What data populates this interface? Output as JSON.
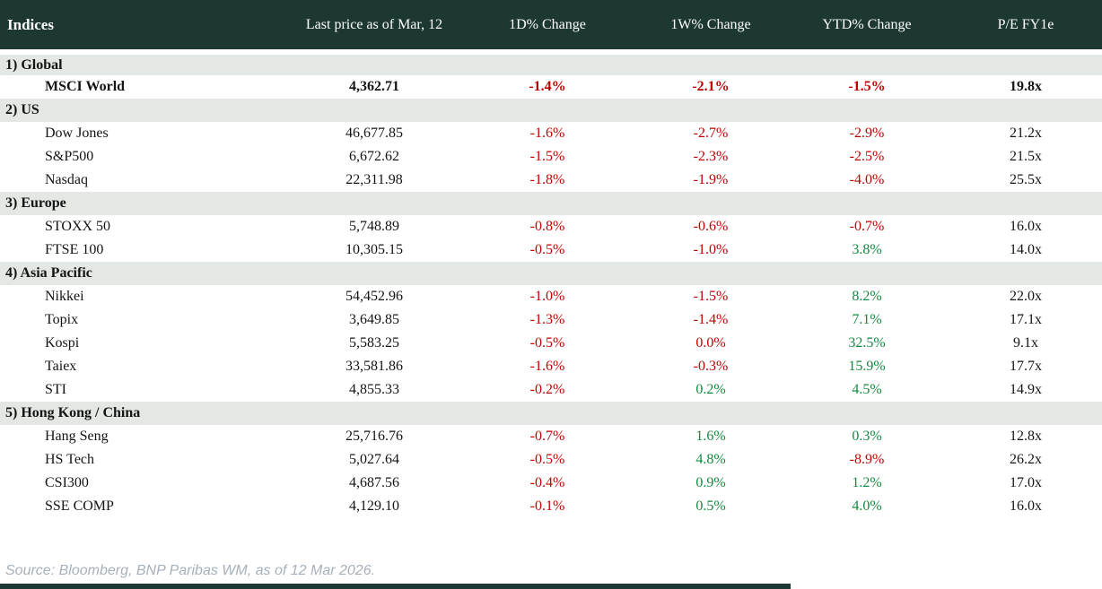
{
  "header": {
    "title": "Indices",
    "columns": [
      "Last price as of Mar, 12",
      "1D% Change",
      "1W% Change",
      "YTD% Change",
      "P/E FY1e"
    ]
  },
  "colors": {
    "header_bg": "#1d3832",
    "section_bg": "#e4e8e4",
    "negative": "#c00000",
    "positive": "#128a3e",
    "source_text": "#a6b0ba"
  },
  "sections": [
    {
      "label": "1) Global",
      "rows": [
        {
          "name": "MSCI World",
          "price": "4,362.71",
          "changes": [
            {
              "v": "-1.4%",
              "c": "neg"
            },
            {
              "v": "-2.1%",
              "c": "neg"
            },
            {
              "v": "-1.5%",
              "c": "neg"
            }
          ],
          "pe": "19.8x",
          "bold": true
        }
      ]
    },
    {
      "label": "2) US",
      "rows": [
        {
          "name": "Dow Jones",
          "price": "46,677.85",
          "changes": [
            {
              "v": "-1.6%",
              "c": "neg"
            },
            {
              "v": "-2.7%",
              "c": "neg"
            },
            {
              "v": "-2.9%",
              "c": "neg"
            }
          ],
          "pe": "21.2x"
        },
        {
          "name": "S&P500",
          "price": "6,672.62",
          "changes": [
            {
              "v": "-1.5%",
              "c": "neg"
            },
            {
              "v": "-2.3%",
              "c": "neg"
            },
            {
              "v": "-2.5%",
              "c": "neg"
            }
          ],
          "pe": "21.5x"
        },
        {
          "name": "Nasdaq",
          "price": "22,311.98",
          "changes": [
            {
              "v": "-1.8%",
              "c": "neg"
            },
            {
              "v": "-1.9%",
              "c": "neg"
            },
            {
              "v": "-4.0%",
              "c": "neg"
            }
          ],
          "pe": "25.5x"
        }
      ]
    },
    {
      "label": "3) Europe",
      "rows": [
        {
          "name": "STOXX 50",
          "price": "5,748.89",
          "changes": [
            {
              "v": "-0.8%",
              "c": "neg"
            },
            {
              "v": "-0.6%",
              "c": "neg"
            },
            {
              "v": "-0.7%",
              "c": "neg"
            }
          ],
          "pe": "16.0x"
        },
        {
          "name": "FTSE 100",
          "price": "10,305.15",
          "changes": [
            {
              "v": "-0.5%",
              "c": "neg"
            },
            {
              "v": "-1.0%",
              "c": "neg"
            },
            {
              "v": "3.8%",
              "c": "pos"
            }
          ],
          "pe": "14.0x"
        }
      ]
    },
    {
      "label": "4) Asia Pacific",
      "rows": [
        {
          "name": "Nikkei",
          "price": "54,452.96",
          "changes": [
            {
              "v": "-1.0%",
              "c": "neg"
            },
            {
              "v": "-1.5%",
              "c": "neg"
            },
            {
              "v": "8.2%",
              "c": "pos"
            }
          ],
          "pe": "22.0x"
        },
        {
          "name": "Topix",
          "price": "3,649.85",
          "changes": [
            {
              "v": "-1.3%",
              "c": "neg"
            },
            {
              "v": "-1.4%",
              "c": "neg"
            },
            {
              "v": "7.1%",
              "c": "pos"
            }
          ],
          "pe": "17.1x"
        },
        {
          "name": "Kospi",
          "price": "5,583.25",
          "changes": [
            {
              "v": "-0.5%",
              "c": "neg"
            },
            {
              "v": "0.0%",
              "c": "neg"
            },
            {
              "v": "32.5%",
              "c": "pos"
            }
          ],
          "pe": "9.1x"
        },
        {
          "name": "Taiex",
          "price": "33,581.86",
          "changes": [
            {
              "v": "-1.6%",
              "c": "neg"
            },
            {
              "v": "-0.3%",
              "c": "neg"
            },
            {
              "v": "15.9%",
              "c": "pos"
            }
          ],
          "pe": "17.7x"
        },
        {
          "name": "STI",
          "price": "4,855.33",
          "changes": [
            {
              "v": "-0.2%",
              "c": "neg"
            },
            {
              "v": "0.2%",
              "c": "pos"
            },
            {
              "v": "4.5%",
              "c": "pos"
            }
          ],
          "pe": "14.9x"
        }
      ]
    },
    {
      "label": "5) Hong Kong / China",
      "rows": [
        {
          "name": "Hang Seng",
          "price": "25,716.76",
          "changes": [
            {
              "v": "-0.7%",
              "c": "neg"
            },
            {
              "v": "1.6%",
              "c": "pos"
            },
            {
              "v": "0.3%",
              "c": "pos"
            }
          ],
          "pe": "12.8x"
        },
        {
          "name": "HS Tech",
          "price": "5,027.64",
          "changes": [
            {
              "v": "-0.5%",
              "c": "neg"
            },
            {
              "v": "4.8%",
              "c": "pos"
            },
            {
              "v": "-8.9%",
              "c": "neg"
            }
          ],
          "pe": "26.2x"
        },
        {
          "name": "CSI300",
          "price": "4,687.56",
          "changes": [
            {
              "v": "-0.4%",
              "c": "neg"
            },
            {
              "v": "0.9%",
              "c": "pos"
            },
            {
              "v": "1.2%",
              "c": "pos"
            }
          ],
          "pe": "17.0x"
        },
        {
          "name": "SSE COMP",
          "price": "4,129.10",
          "changes": [
            {
              "v": "-0.1%",
              "c": "neg"
            },
            {
              "v": "0.5%",
              "c": "pos"
            },
            {
              "v": "4.0%",
              "c": "pos"
            }
          ],
          "pe": "16.0x"
        }
      ]
    }
  ],
  "footer": {
    "source": "Source: Bloomberg, BNP Paribas WM, as of 12 Mar 2026."
  }
}
